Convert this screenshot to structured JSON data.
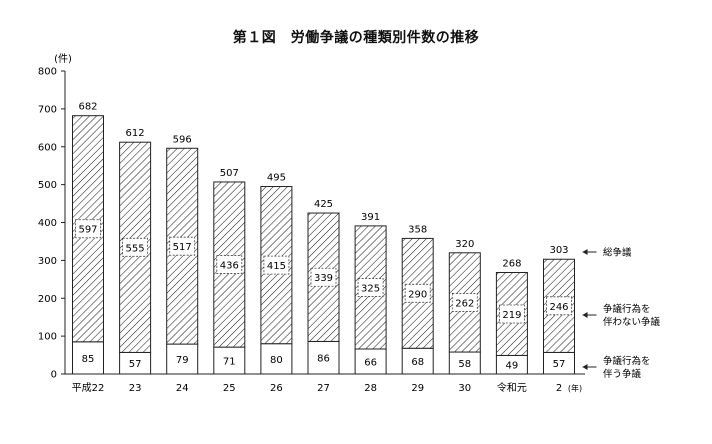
{
  "chart_data": {
    "type": "bar",
    "stacked": true,
    "title": "第１図　労働争議の種類別件数の推移",
    "ylabel": "(件)",
    "xlabel_unit": "(年)",
    "ylim": [
      0,
      800
    ],
    "yticks": [
      0,
      100,
      200,
      300,
      400,
      500,
      600,
      700,
      800
    ],
    "categories": [
      "平成22",
      "23",
      "24",
      "25",
      "26",
      "27",
      "28",
      "29",
      "30",
      "令和元",
      "2"
    ],
    "series": [
      {
        "name": "争議行為を伴う争議",
        "values": [
          85,
          57,
          79,
          71,
          80,
          86,
          66,
          68,
          58,
          49,
          57
        ],
        "fill": "white"
      },
      {
        "name": "争議行為を伴わない争議",
        "values": [
          597,
          555,
          517,
          436,
          415,
          339,
          325,
          290,
          262,
          219,
          246
        ],
        "fill": "hatch"
      }
    ],
    "totals": {
      "name": "総争議",
      "values": [
        682,
        612,
        596,
        507,
        495,
        425,
        391,
        358,
        320,
        268,
        303
      ]
    },
    "legend_labels": [
      {
        "key": "total",
        "line1": "総争議",
        "line2": ""
      },
      {
        "key": "without",
        "line1": "争議行為を",
        "line2": "伴わない争議"
      },
      {
        "key": "with",
        "line1": "争議行為を",
        "line2": "伴う争議"
      }
    ],
    "grid": false
  }
}
